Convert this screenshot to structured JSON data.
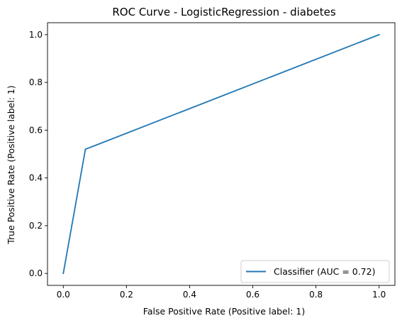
{
  "chart_data": {
    "type": "line",
    "title": "ROC Curve - LogisticRegression - diabetes",
    "xlabel": "False Positive Rate (Positive label: 1)",
    "ylabel": "True Positive Rate (Positive label: 1)",
    "xlim": [
      -0.05,
      1.05
    ],
    "ylim": [
      -0.05,
      1.05
    ],
    "xticks": [
      0.0,
      0.2,
      0.4,
      0.6,
      0.8,
      1.0
    ],
    "yticks": [
      0.0,
      0.2,
      0.4,
      0.6,
      0.8,
      1.0
    ],
    "xtick_labels": [
      "0.0",
      "0.2",
      "0.4",
      "0.6",
      "0.8",
      "1.0"
    ],
    "ytick_labels": [
      "0.0",
      "0.2",
      "0.4",
      "0.6",
      "0.8",
      "1.0"
    ],
    "grid": false,
    "legend_position": "bottom-right",
    "series": [
      {
        "name": "Classifier (AUC = 0.72)",
        "color": "#1f77b4",
        "x": [
          0.0,
          0.07,
          1.0
        ],
        "y": [
          0.0,
          0.52,
          1.0
        ]
      }
    ]
  }
}
